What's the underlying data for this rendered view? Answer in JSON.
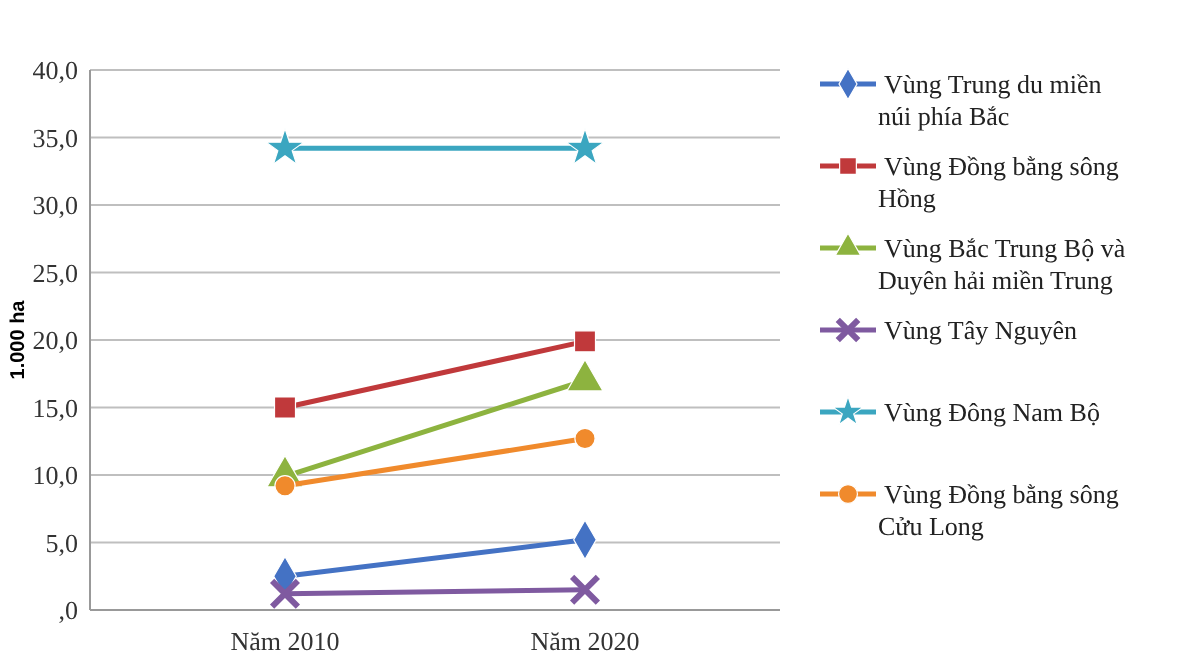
{
  "chart_data": {
    "type": "line",
    "ylabel": "1.000 ha",
    "categories": [
      "Năm 2010",
      "Năm 2020"
    ],
    "ylim": [
      0,
      40
    ],
    "yticks": [
      {
        "value": 0,
        "label": ",0"
      },
      {
        "value": 5,
        "label": "5,0"
      },
      {
        "value": 10,
        "label": "10,0"
      },
      {
        "value": 15,
        "label": "15,0"
      },
      {
        "value": 20,
        "label": "20,0"
      },
      {
        "value": 25,
        "label": "25,0"
      },
      {
        "value": 30,
        "label": "30,0"
      },
      {
        "value": 35,
        "label": "35,0"
      },
      {
        "value": 40,
        "label": "40,0"
      }
    ],
    "grid": "y",
    "legend": "right",
    "line_style": "solid",
    "series": [
      {
        "name": "Vùng Trung du miền núi phía Bắc",
        "color": "#4472c4",
        "marker": "diamond",
        "values": [
          2.5,
          5.2
        ]
      },
      {
        "name": "Vùng Đồng bằng sông Hồng",
        "color": "#c0393b",
        "marker": "square",
        "values": [
          15.0,
          19.9
        ]
      },
      {
        "name": "Vùng Bắc Trung Bộ và Duyên hải miền Trung",
        "color": "#8db33f",
        "marker": "triangle",
        "values": [
          9.9,
          17.0
        ]
      },
      {
        "name": "Vùng Tây Nguyên",
        "color": "#7f5aa0",
        "marker": "cross",
        "values": [
          1.2,
          1.5
        ]
      },
      {
        "name": "Vùng Đông Nam Bộ",
        "color": "#3ba6c0",
        "marker": "star",
        "values": [
          34.2,
          34.2
        ]
      },
      {
        "name": "Vùng Đồng bằng sông Cửu Long",
        "color": "#f08a2c",
        "marker": "circle",
        "values": [
          9.2,
          12.7
        ]
      }
    ]
  }
}
